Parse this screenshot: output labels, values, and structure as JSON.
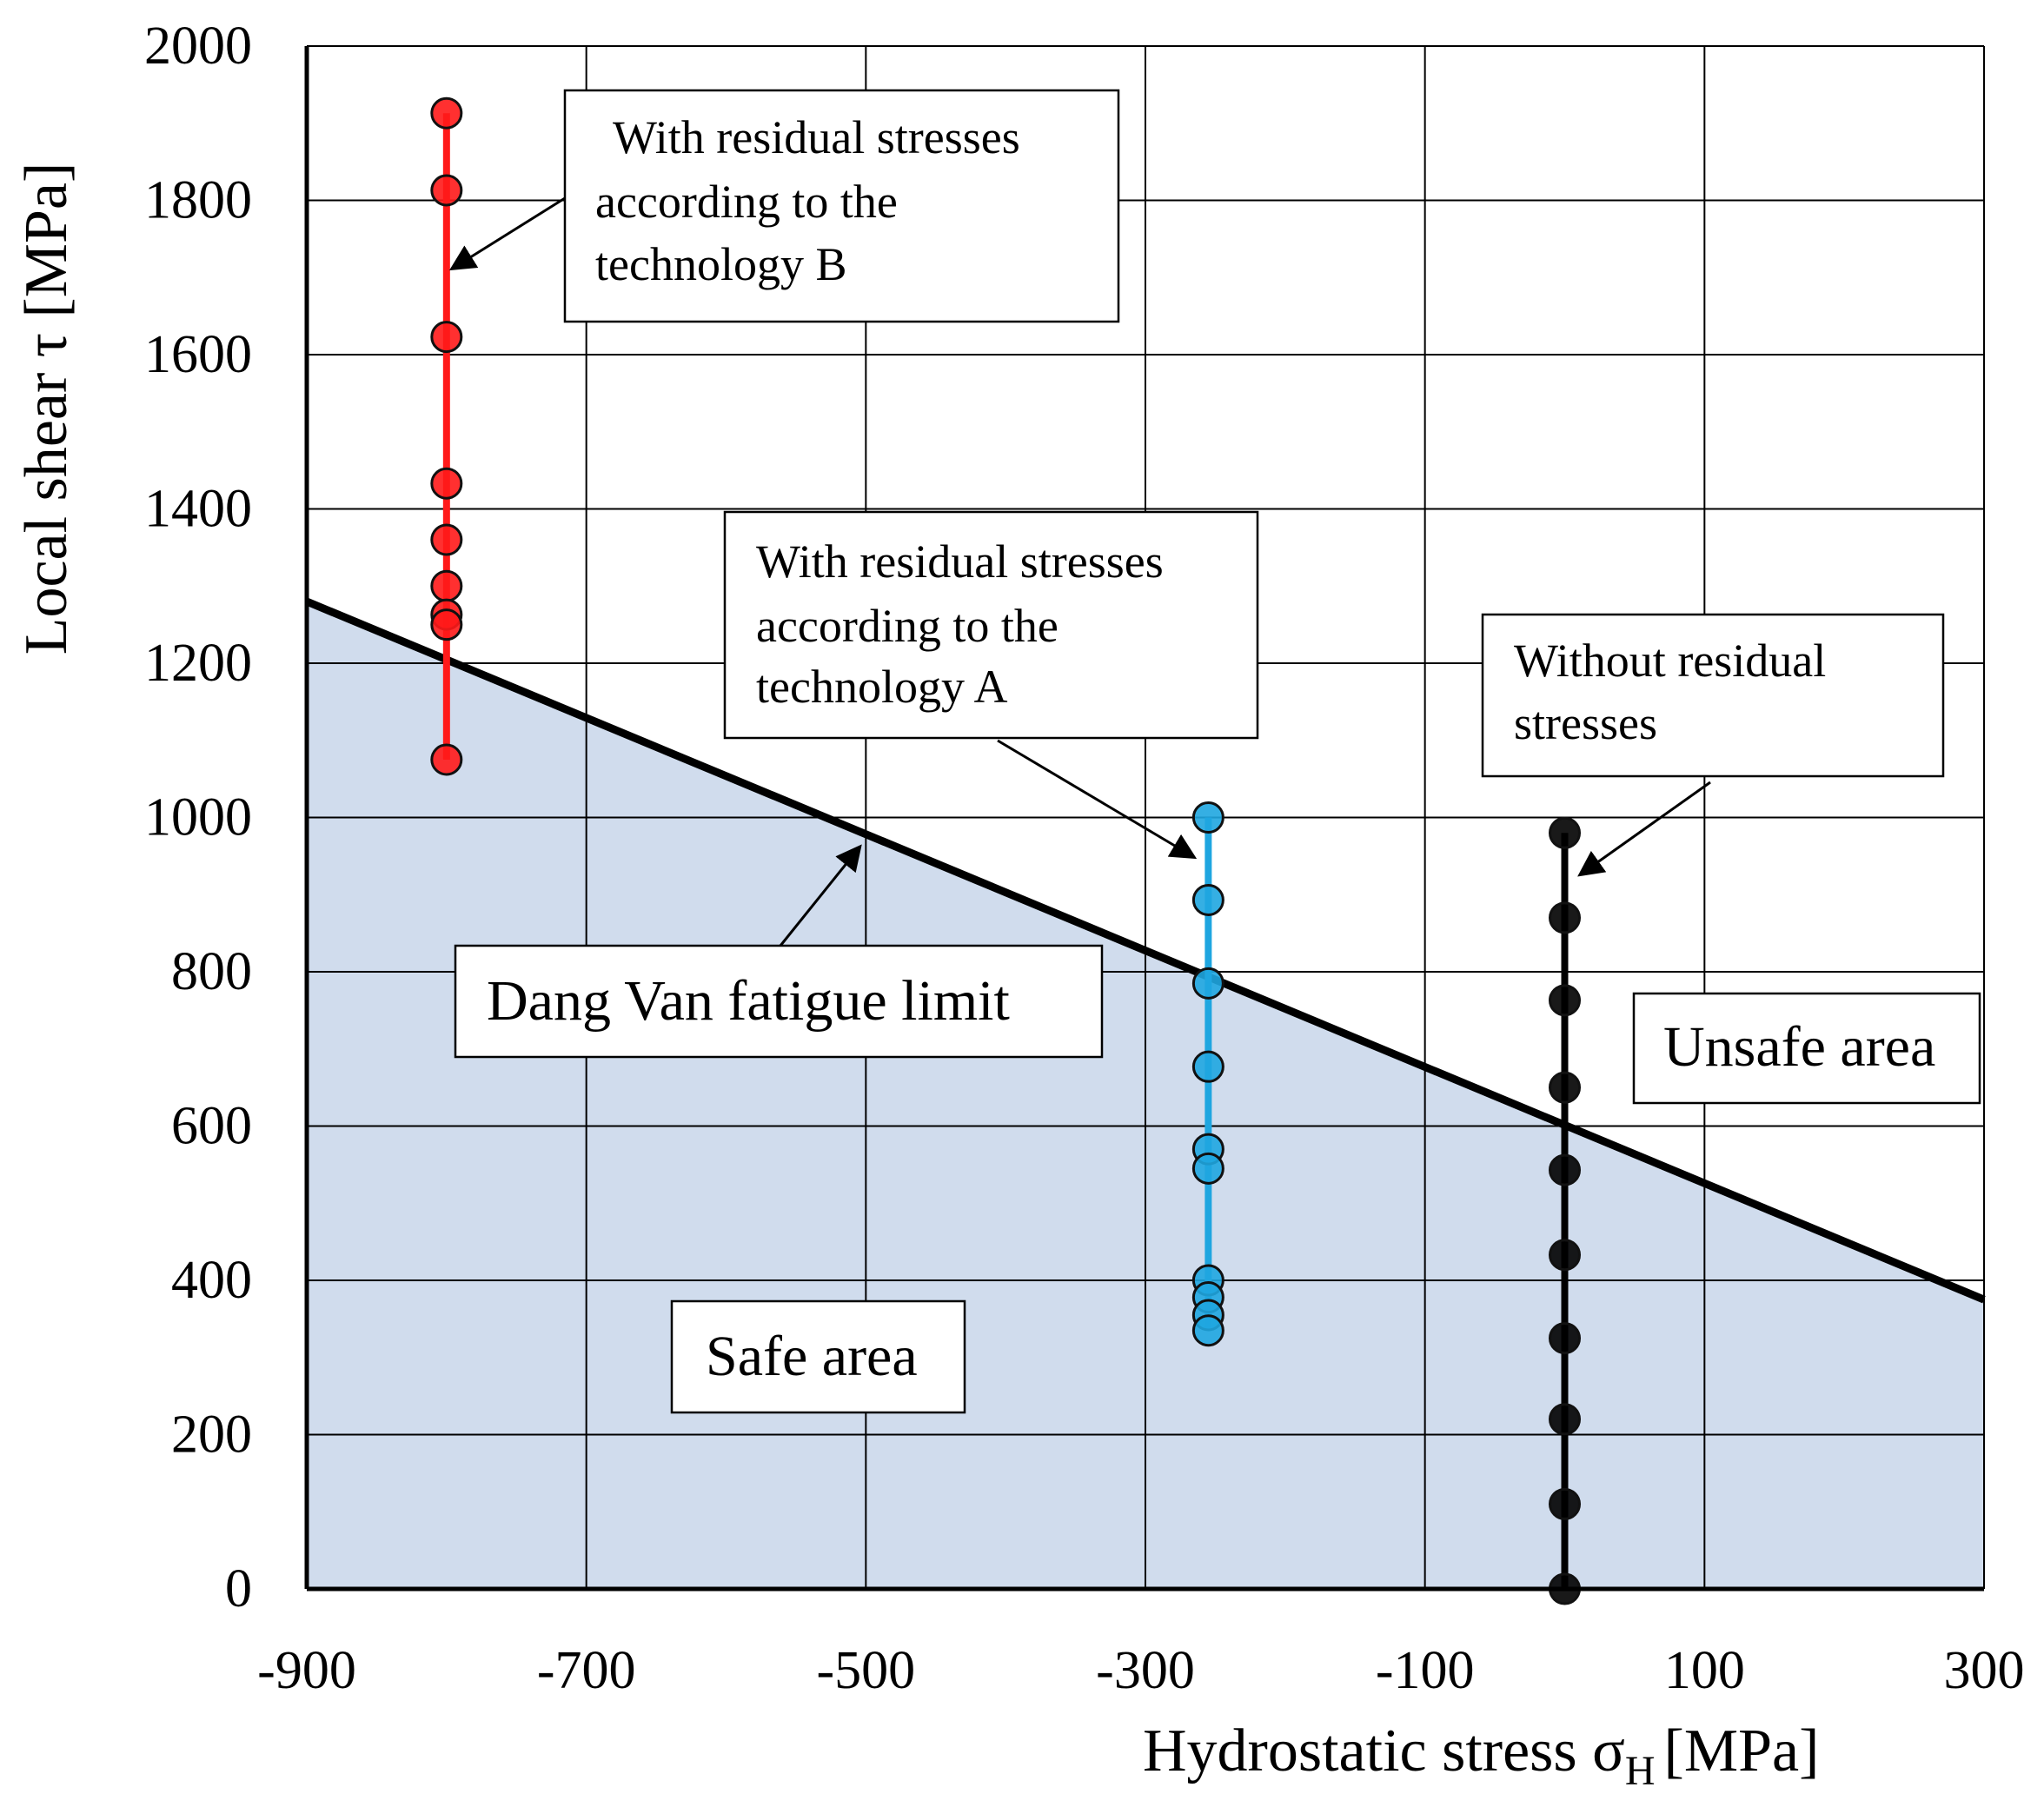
{
  "chart_data": {
    "type": "scatter",
    "title": "",
    "xlabel": "Hydrostatic stress σ",
    "xlabel_sub": "H",
    "xlabel_unit": "[MPa]",
    "ylabel": "Local shear τ [MPa]",
    "xlim": [
      -900,
      300
    ],
    "ylim": [
      0,
      2000
    ],
    "x_ticks": [
      -900,
      -700,
      -500,
      -300,
      -100,
      100,
      300
    ],
    "x_tick_labels": [
      "-900",
      "-700",
      "-500",
      "-300",
      "-100",
      "100",
      "300"
    ],
    "y_ticks": [
      0,
      200,
      400,
      600,
      800,
      1000,
      1200,
      1400,
      1600,
      1800,
      2000
    ],
    "y_tick_labels": [
      "0",
      "200",
      "400",
      "600",
      "800",
      "1000",
      "1200",
      "1400",
      "1600",
      "1800",
      "2000"
    ],
    "grid_x": [
      -900,
      -700,
      -500,
      -300,
      -100,
      100,
      300
    ],
    "grid_y": [
      0,
      200,
      400,
      600,
      800,
      1000,
      1200,
      1400,
      1600,
      1800,
      2000
    ],
    "fatigue_limit": {
      "name": "Dang Van fatigue limit",
      "points": [
        [
          -900,
          1280
        ],
        [
          300,
          375
        ]
      ],
      "color": "#000000"
    },
    "safe_area_color": "#d0dced",
    "series": [
      {
        "name": "With residual stresses according to the technology B",
        "color": "#ff1a1a",
        "x": -800,
        "y": [
          1913,
          1813,
          1623,
          1433,
          1360,
          1300,
          1263,
          1250,
          1075
        ]
      },
      {
        "name": "With residual stresses according to the technology A",
        "color": "#1fa6e0",
        "x": -255,
        "y": [
          1000,
          893,
          785,
          677,
          570,
          545,
          400,
          378,
          355,
          335
        ]
      },
      {
        "name": "Without residual stresses",
        "color": "#000000",
        "x": 0,
        "y": [
          980,
          870,
          763,
          650,
          543,
          433,
          325,
          220,
          110,
          0
        ]
      }
    ],
    "annotations": [
      {
        "lines": [
          "With residual stresses",
          "according to the",
          "technology B"
        ]
      },
      {
        "lines": [
          "With residual stresses",
          "according to the",
          "technology A"
        ]
      },
      {
        "lines": [
          "Without residual",
          "stresses"
        ]
      },
      {
        "lines": [
          "Dang Van fatigue limit"
        ]
      },
      {
        "lines": [
          "Unsafe area"
        ]
      },
      {
        "lines": [
          "Safe area"
        ]
      }
    ]
  }
}
